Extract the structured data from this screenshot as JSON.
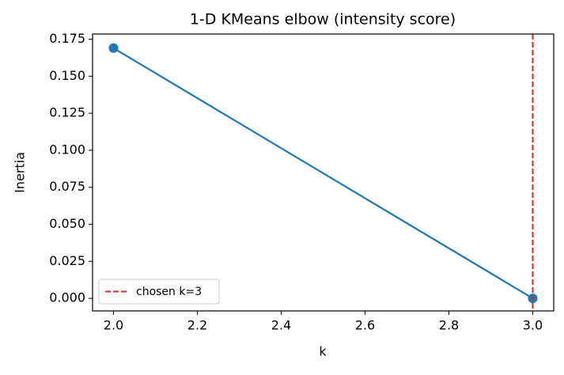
{
  "chart_data": {
    "type": "line",
    "title": "1-D KMeans elbow (intensity score)",
    "xlabel": "k",
    "ylabel": "Inertia",
    "x": [
      2,
      3
    ],
    "series": [
      {
        "name": null,
        "color": "#1f77b4",
        "values": [
          0.169,
          0.0
        ]
      }
    ],
    "vline": {
      "x": 3,
      "name": "chosen k=3",
      "color": "#d62728"
    },
    "legend": "lower left",
    "xlim": [
      1.95,
      3.05
    ],
    "ylim": [
      -0.0085,
      0.1785
    ],
    "xticks": [
      {
        "value": 2.0,
        "label": "2.0"
      },
      {
        "value": 2.2,
        "label": "2.2"
      },
      {
        "value": 2.4,
        "label": "2.4"
      },
      {
        "value": 2.6,
        "label": "2.6"
      },
      {
        "value": 2.8,
        "label": "2.8"
      },
      {
        "value": 3.0,
        "label": "3.0"
      }
    ],
    "yticks": [
      {
        "value": 0,
        "label": "0.000"
      },
      {
        "value": 0.025,
        "label": "0.025"
      },
      {
        "value": 0.05,
        "label": "0.050"
      },
      {
        "value": 0.075,
        "label": "0.075"
      },
      {
        "value": 0.1,
        "label": "0.100"
      },
      {
        "value": 0.125,
        "label": "0.125"
      },
      {
        "value": 0.15,
        "label": "0.150"
      },
      {
        "value": 0.175,
        "label": "0.175"
      }
    ]
  }
}
